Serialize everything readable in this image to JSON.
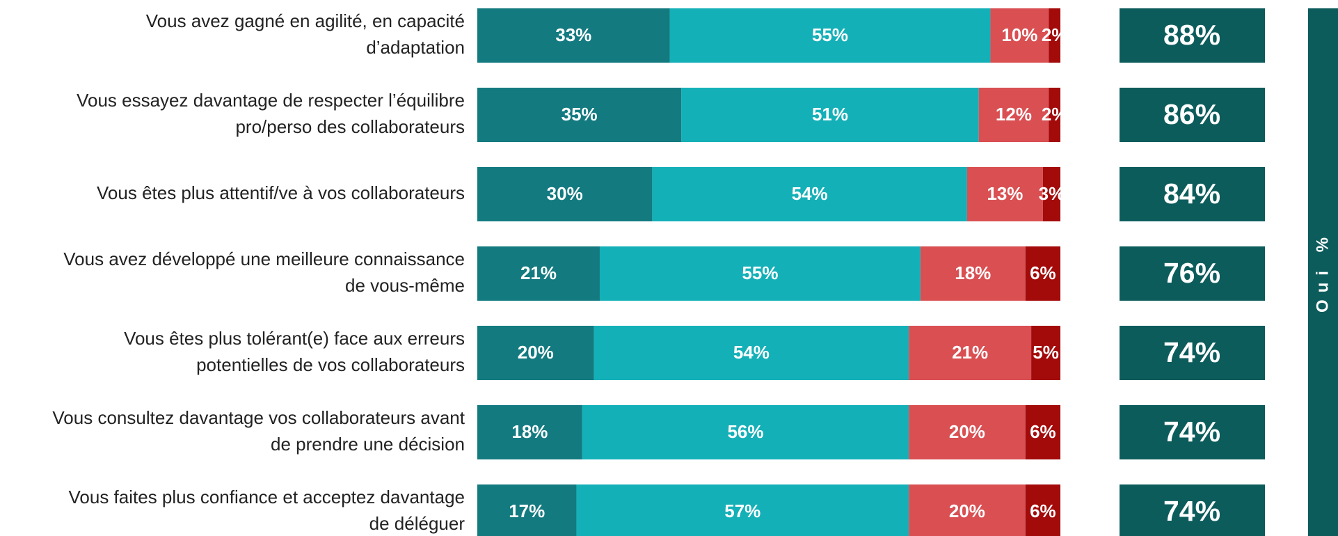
{
  "chart_data": {
    "type": "stacked_bar_horizontal",
    "categories": [
      [
        "Vous avez gagné en agilité, en capacité",
        "d’adaptation"
      ],
      [
        "Vous essayez davantage de respecter l’équilibre",
        "pro/perso des collaborateurs"
      ],
      [
        "Vous êtes plus attentif/ve à vos collaborateurs"
      ],
      [
        "Vous avez développé une meilleure connaissance",
        "de vous-même"
      ],
      [
        "Vous êtes plus tolérant(e) face aux erreurs",
        "potentielles de vos collaborateurs"
      ],
      [
        "Vous consultez davantage vos collaborateurs avant",
        "de prendre une décision"
      ],
      [
        "Vous faites plus confiance et acceptez davantage",
        "de déléguer"
      ]
    ],
    "series": [
      {
        "color": "#137a80",
        "values": [
          33,
          35,
          30,
          21,
          20,
          18,
          17
        ],
        "value_labels": [
          "33%",
          "35%",
          "30%",
          "21%",
          "20%",
          "18%",
          "17%"
        ]
      },
      {
        "color": "#14b0b8",
        "values": [
          55,
          51,
          54,
          55,
          54,
          56,
          57
        ],
        "value_labels": [
          "55%",
          "51%",
          "54%",
          "55%",
          "54%",
          "56%",
          "57%"
        ]
      },
      {
        "color": "#d94f52",
        "values": [
          10,
          12,
          13,
          18,
          21,
          20,
          20
        ],
        "value_labels": [
          "10%",
          "12%",
          "13%",
          "18%",
          "21%",
          "20%",
          "20%"
        ]
      },
      {
        "color": "#a30a0a",
        "values": [
          2,
          2,
          3,
          6,
          5,
          6,
          6
        ],
        "value_labels": [
          "2%",
          "2%",
          "3%",
          "6%",
          "5%",
          "6%",
          "6%"
        ]
      }
    ],
    "totals": {
      "label": "Oui %",
      "color": "#0d5c5c",
      "values": [
        88,
        86,
        84,
        76,
        74,
        74,
        74
      ],
      "value_labels": [
        "88%",
        "86%",
        "84%",
        "76%",
        "74%",
        "74%",
        "74%"
      ]
    },
    "xlim": [
      0,
      100
    ]
  }
}
